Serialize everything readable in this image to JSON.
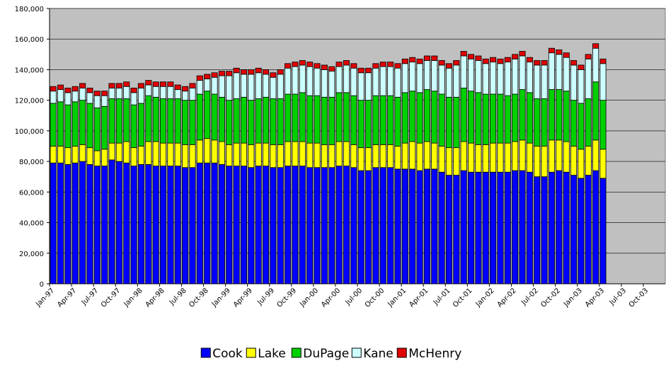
{
  "chart_data": {
    "type": "stacked_bar",
    "categories": [
      "Jan-97",
      null,
      null,
      "Apr-97",
      null,
      null,
      "Jul-97",
      null,
      null,
      "Oct-97",
      null,
      null,
      "Jan-98",
      null,
      null,
      "Apr-98",
      null,
      null,
      "Jul-98",
      null,
      null,
      "Oct-98",
      null,
      null,
      "Jan-99",
      null,
      null,
      "Apr-99",
      null,
      null,
      "Jul-99",
      null,
      null,
      "Oct-99",
      null,
      null,
      "Jan-00",
      null,
      null,
      "Apr-00",
      null,
      null,
      "Jul-00",
      null,
      null,
      "Oct-00",
      null,
      null,
      "Jan-01",
      null,
      null,
      "Apr-01",
      null,
      null,
      "Jul-01",
      null,
      null,
      "Oct-01",
      null,
      null,
      "Jan-02",
      null,
      null,
      "Apr-02",
      null,
      null,
      "Jul-02",
      null,
      null,
      "Oct-02",
      null,
      null,
      "Jan-03",
      null,
      null,
      "Apr-03",
      null,
      null,
      "Jul-03",
      null,
      null,
      "Oct-03",
      null,
      null
    ],
    "series": [
      {
        "name": "Cook",
        "color": "#0000ff",
        "values": [
          79000,
          79000,
          78000,
          79000,
          80000,
          78000,
          77000,
          77000,
          81000,
          80000,
          79000,
          77000,
          78000,
          78000,
          77000,
          77000,
          77000,
          77000,
          76000,
          76000,
          79000,
          79000,
          79000,
          78000,
          77000,
          77000,
          77000,
          76000,
          77000,
          77000,
          76000,
          76000,
          77000,
          77000,
          77000,
          76000,
          76000,
          76000,
          76000,
          77000,
          77000,
          76000,
          74000,
          74000,
          76000,
          76000,
          76000,
          75000,
          75000,
          75000,
          74000,
          75000,
          75000,
          73000,
          71000,
          71000,
          74000,
          73000,
          73000,
          73000,
          73000,
          73000,
          73000,
          74000,
          74000,
          73000,
          70000,
          70000,
          73000,
          74000,
          73000,
          71000,
          69000,
          71000,
          74000,
          69000,
          null,
          null,
          null,
          null,
          null,
          null,
          null,
          null
        ]
      },
      {
        "name": "Lake",
        "color": "#ffff00",
        "values": [
          11000,
          11000,
          11000,
          11000,
          11000,
          11000,
          10000,
          11000,
          11000,
          12000,
          14000,
          12000,
          12000,
          15000,
          16000,
          15000,
          15000,
          15000,
          15000,
          15000,
          15000,
          16000,
          15000,
          15000,
          14000,
          15000,
          15000,
          15000,
          15000,
          15000,
          15000,
          15000,
          16000,
          16000,
          16000,
          16000,
          16000,
          15000,
          15000,
          16000,
          16000,
          15000,
          15000,
          15000,
          15000,
          15000,
          15000,
          15000,
          17000,
          18000,
          18000,
          18000,
          17000,
          17000,
          18000,
          18000,
          19000,
          19000,
          18000,
          18000,
          19000,
          19000,
          19000,
          19000,
          20000,
          19000,
          20000,
          20000,
          21000,
          20000,
          20000,
          19000,
          19000,
          19000,
          20000,
          19000,
          null,
          null,
          null,
          null,
          null,
          null,
          null,
          null
        ]
      },
      {
        "name": "DuPage",
        "color": "#00d000",
        "values": [
          28000,
          29000,
          28000,
          29000,
          29000,
          29000,
          28000,
          28000,
          29000,
          29000,
          28000,
          28000,
          28000,
          30000,
          29000,
          29000,
          29000,
          29000,
          29000,
          29000,
          30000,
          31000,
          30000,
          29000,
          29000,
          29000,
          30000,
          29000,
          29000,
          30000,
          30000,
          30000,
          31000,
          31000,
          32000,
          31000,
          31000,
          31000,
          31000,
          32000,
          32000,
          32000,
          31000,
          31000,
          32000,
          32000,
          32000,
          32000,
          33000,
          33000,
          33000,
          34000,
          34000,
          34000,
          33000,
          33000,
          35000,
          34000,
          34000,
          33000,
          32000,
          32000,
          31000,
          31000,
          33000,
          33000,
          31000,
          31000,
          33000,
          33000,
          33000,
          30000,
          30000,
          31000,
          38000,
          32000,
          null,
          null,
          null,
          null,
          null,
          null,
          null,
          null
        ]
      },
      {
        "name": "Kane",
        "color": "#ccffff",
        "values": [
          8000,
          8000,
          8000,
          7000,
          8000,
          7000,
          8000,
          7000,
          7000,
          7000,
          8000,
          8000,
          10000,
          7000,
          7000,
          8000,
          8000,
          6000,
          6000,
          8000,
          9000,
          8000,
          11000,
          14000,
          16000,
          17000,
          15000,
          17000,
          17000,
          15000,
          14000,
          16000,
          17000,
          18000,
          18000,
          19000,
          18000,
          18000,
          17000,
          17000,
          18000,
          18000,
          18000,
          18000,
          18000,
          19000,
          19000,
          19000,
          19000,
          19000,
          19000,
          19000,
          20000,
          19000,
          19000,
          21000,
          21000,
          21000,
          21000,
          20000,
          21000,
          20000,
          22000,
          23000,
          22000,
          20000,
          22000,
          22000,
          24000,
          23000,
          22000,
          23000,
          22000,
          26000,
          22000,
          24000,
          null,
          null,
          null,
          null,
          null,
          null,
          null,
          null
        ]
      },
      {
        "name": "McHenry",
        "color": "#e00000",
        "values": [
          3000,
          3000,
          3000,
          3000,
          3000,
          3000,
          3000,
          3000,
          3000,
          3000,
          3000,
          3000,
          3000,
          3000,
          3000,
          3000,
          3000,
          3000,
          3000,
          3000,
          3000,
          3000,
          3000,
          3000,
          3000,
          3000,
          3000,
          3000,
          3000,
          3000,
          3000,
          3000,
          3000,
          3000,
          3000,
          3000,
          3000,
          3000,
          3000,
          3000,
          3000,
          3000,
          3000,
          3000,
          3000,
          3000,
          3000,
          3000,
          3000,
          3000,
          3000,
          3000,
          3000,
          3000,
          3000,
          3000,
          3000,
          3000,
          3000,
          3000,
          3000,
          3000,
          3000,
          3000,
          3000,
          3000,
          3000,
          3000,
          3000,
          3000,
          3000,
          3000,
          3000,
          3000,
          3000,
          3000,
          null,
          null,
          null,
          null,
          null,
          null,
          null,
          null
        ]
      }
    ],
    "ylim": [
      0,
      180000
    ],
    "yticks": [
      0,
      {
        "value": 20000,
        "label": "20,000"
      },
      {
        "value": 40000,
        "label": "40,000"
      },
      {
        "value": 60000,
        "label": "60,000"
      },
      {
        "value": 80000,
        "label": "80,000"
      },
      {
        "value": 100000,
        "label": "100,000"
      },
      {
        "value": 120000,
        "label": "120,000"
      },
      {
        "value": 140000,
        "label": "140,000"
      },
      {
        "value": 160000,
        "label": "160,000"
      },
      {
        "value": 180000,
        "label": "180,000"
      }
    ],
    "grid": true,
    "legend": "bottom"
  }
}
